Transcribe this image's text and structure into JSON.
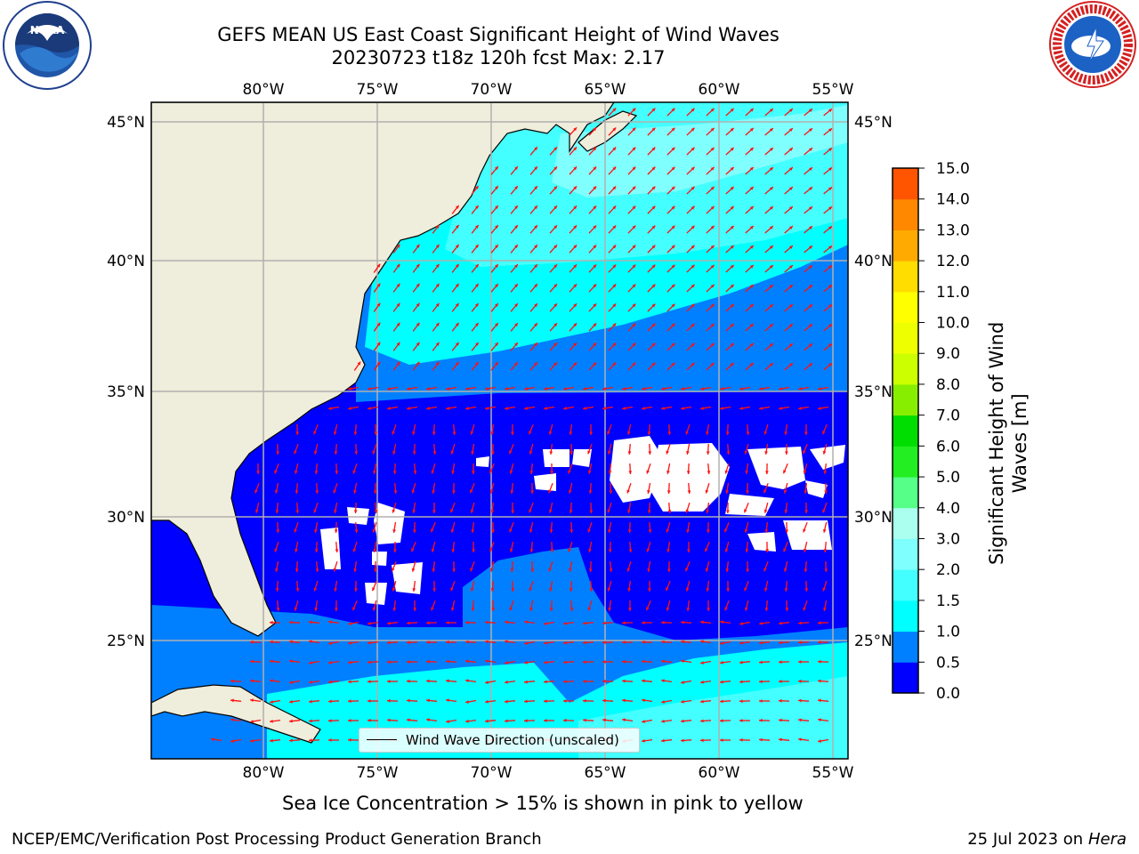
{
  "title": {
    "line1": "GEFS MEAN US East Coast Significant Height of Wind Waves",
    "line2": "20230723 t18z 120h fcst   Max: 2.17"
  },
  "logos": {
    "left": "noaa-logo",
    "right": "nws-logo"
  },
  "map": {
    "lon_ticks": [
      "80°W",
      "75°W",
      "70°W",
      "65°W",
      "60°W",
      "55°W"
    ],
    "lat_ticks": [
      "45°N",
      "40°N",
      "35°N",
      "30°N",
      "25°N"
    ],
    "land_color": "#efeddb",
    "legend": "Wind Wave Direction (unscaled)"
  },
  "colorbar": {
    "label_line1": "Significant Height of Wind",
    "label_line2": "Waves [m]",
    "ticks": [
      "0.0",
      "0.5",
      "1.0",
      "1.5",
      "2.0",
      "3.0",
      "4.0",
      "5.0",
      "6.0",
      "7.0",
      "8.0",
      "9.0",
      "10.0",
      "11.0",
      "12.0",
      "13.0",
      "14.0",
      "15.0"
    ],
    "colors": [
      "#0000ff",
      "#0080ff",
      "#00ffff",
      "#44ffff",
      "#80ffff",
      "#aaffee",
      "#55ff88",
      "#22ee22",
      "#00dd00",
      "#88ee00",
      "#ccff00",
      "#eeff00",
      "#ffff00",
      "#ffdd00",
      "#ffaa00",
      "#ff8800",
      "#ff5500",
      "#ff2200",
      "#ff0000"
    ]
  },
  "footer": {
    "caption": "Sea Ice Concentration > 15% is shown in pink to yellow",
    "credit": "NCEP/EMC/Verification Post Processing Product Generation Branch",
    "date": "25 Jul 2023 on",
    "host": "Hera"
  }
}
